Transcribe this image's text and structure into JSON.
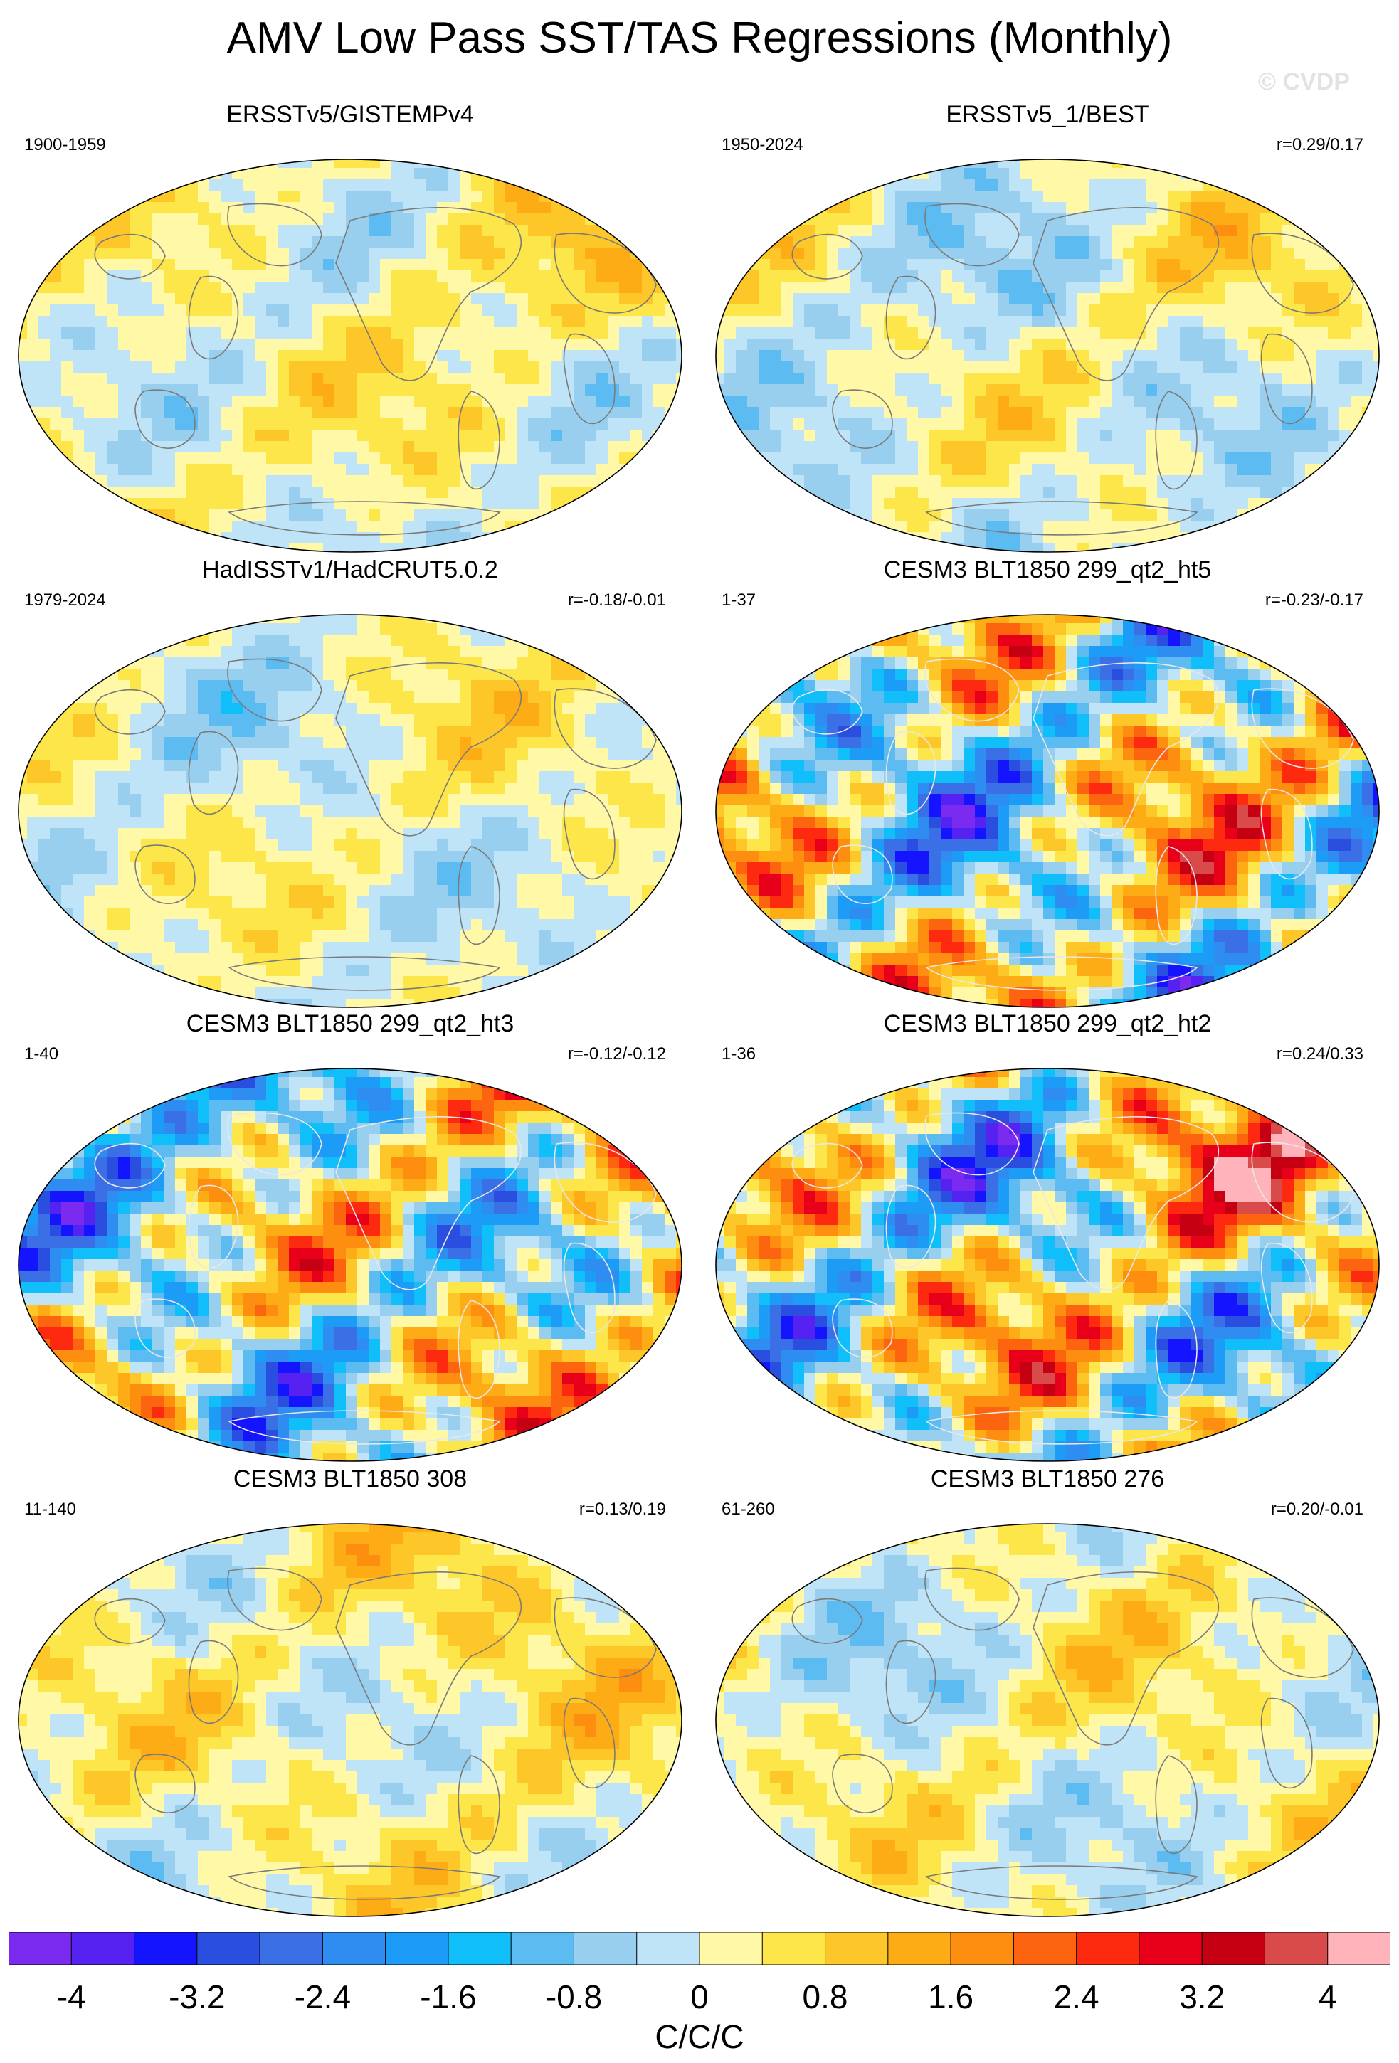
{
  "title": "AMV Low Pass SST/TAS Regressions (Monthly)",
  "watermark": "© CVDP",
  "chart_data": {
    "type": "heatmap",
    "projection": "robinson-global-map",
    "panels": [
      {
        "title": "ERSSTv5/GISTEMPv4",
        "years": "1900-1959",
        "corr": "",
        "amp": 1.2,
        "seed": 3,
        "bias": 0.35
      },
      {
        "title": "ERSSTv5_1/BEST",
        "years": "1950-2024",
        "corr": "r=0.29/0.17",
        "amp": 1.3,
        "seed": 7,
        "bias": 0.1
      },
      {
        "title": "HadISSTv1/HadCRUT5.0.2",
        "years": "1979-2024",
        "corr": "r=-0.18/-0.01",
        "amp": 1.1,
        "seed": 11,
        "bias": 0.15
      },
      {
        "title": "CESM3 BLT1850 299_qt2_ht5",
        "years": "1-37",
        "corr": "r=-0.23/-0.17",
        "amp": 4.2,
        "seed": 17,
        "bias": 0.0
      },
      {
        "title": "CESM3 BLT1850 299_qt2_ht3",
        "years": "1-40",
        "corr": "r=-0.12/-0.12",
        "amp": 4.0,
        "seed": 23,
        "bias": 0.0
      },
      {
        "title": "CESM3 BLT1850 299_qt2_ht2",
        "years": "1-36",
        "corr": "r=0.24/0.33",
        "amp": 4.1,
        "seed": 29,
        "bias": 0.3
      },
      {
        "title": "CESM3 BLT1850 308",
        "years": "11-140",
        "corr": "r=0.13/0.19",
        "amp": 1.3,
        "seed": 31,
        "bias": 0.45
      },
      {
        "title": "CESM3 BLT1850 276",
        "years": "61-260",
        "corr": "r=0.20/-0.01",
        "amp": 1.3,
        "seed": 37,
        "bias": 0.25
      }
    ],
    "colorbar": {
      "levels": [
        -4,
        -3.6,
        -3.2,
        -2.8,
        -2.4,
        -2.0,
        -1.6,
        -1.2,
        -0.8,
        -0.4,
        0,
        0.4,
        0.8,
        1.2,
        1.6,
        2.0,
        2.4,
        2.8,
        3.2,
        3.6,
        4
      ],
      "colors": [
        "#7b2bf0",
        "#5522f2",
        "#1414ff",
        "#2a4ee0",
        "#3b6fe6",
        "#2f8df2",
        "#1c9cf7",
        "#10bef9",
        "#5cbcf2",
        "#98cfee",
        "#bfe3f7",
        "#fff8a6",
        "#fde64a",
        "#fdc72a",
        "#fdac16",
        "#fd8e0f",
        "#fd6410",
        "#fd2a10",
        "#e8001a",
        "#c40012",
        "#d94a4a",
        "#ffb3ba"
      ],
      "tick_labels": [
        "-4",
        "-3.2",
        "-2.4",
        "-1.6",
        "-0.8",
        "0",
        "0.8",
        "1.6",
        "2.4",
        "3.2",
        "4"
      ],
      "units": "C/C/C"
    }
  }
}
